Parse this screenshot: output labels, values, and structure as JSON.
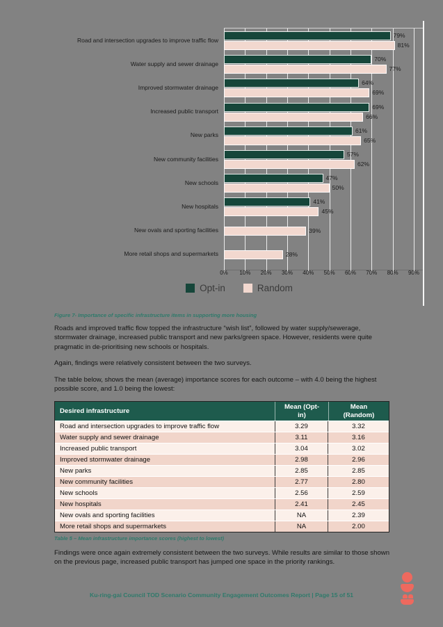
{
  "page": {
    "background": "#828282"
  },
  "chart_data": {
    "type": "bar",
    "orientation": "horizontal",
    "categories": [
      "Road and intersection upgrades to improve traffic flow",
      "Water supply and sewer drainage",
      "Improved stormwater drainage",
      "Increased public transport",
      "New parks",
      "New community facilities",
      "New schools",
      "New hospitals",
      "New ovals and sporting facilities",
      "More retail shops and supermarkets"
    ],
    "series": [
      {
        "name": "Opt-in",
        "color": "#16463A",
        "values": [
          79,
          70,
          64,
          69,
          61,
          57,
          47,
          41,
          null,
          null
        ]
      },
      {
        "name": "Random",
        "color": "#F2D8CF",
        "values": [
          81,
          77,
          69,
          66,
          65,
          62,
          50,
          45,
          39,
          28
        ]
      }
    ],
    "value_suffix": "%",
    "xlim": [
      0,
      90
    ],
    "x_ticks": [
      "0%",
      "10%",
      "20%",
      "30%",
      "40%",
      "50%",
      "60%",
      "70%",
      "80%",
      "90%"
    ],
    "grid": true,
    "legend_position": "bottom"
  },
  "figure_caption": "Figure 7- Importance of specific infrastructure items in supporting more housing",
  "paragraphs": {
    "p1": "Roads and improved traffic flow topped the infrastructure “wish list”, followed by water supply/sewerage, stormwater drainage, increased public transport and new parks/green space. However, residents were quite pragmatic in de-prioritising new schools or hospitals.",
    "p2": "Again, findings were relatively consistent between the two surveys.",
    "p3": "The table below, shows the mean (average) importance scores for each outcome – with 4.0 being the highest possible score, and 1.0 being the lowest:"
  },
  "table": {
    "columns": [
      "Desired infrastructure",
      "Mean (Opt-in)",
      "Mean (Random)"
    ],
    "rows": [
      [
        "Road and intersection upgrades to improve traffic flow",
        "3.29",
        "3.32"
      ],
      [
        "Water supply and sewer drainage",
        "3.11",
        "3.16"
      ],
      [
        "Increased public transport",
        "3.04",
        "3.02"
      ],
      [
        "Improved stormwater drainage",
        "2.98",
        "2.96"
      ],
      [
        "New parks",
        "2.85",
        "2.85"
      ],
      [
        "New community facilities",
        "2.77",
        "2.80"
      ],
      [
        "New schools",
        "2.56",
        "2.59"
      ],
      [
        "New hospitals",
        "2.41",
        "2.45"
      ],
      [
        "New ovals and sporting facilities",
        "NA",
        "2.39"
      ],
      [
        "More retail shops and supermarkets",
        "NA",
        "2.00"
      ]
    ],
    "caption": "Table 5 – Mean infrastructure importance scores (highest to lowest)"
  },
  "closing_paragraph": "Findings were once again extremely consistent between the two surveys. While results are similar to those shown on the previous page, increased public transport has jumped one space in the priority rankings.",
  "footer": {
    "text": "Ku-ring-gai Council TOD Scenario Community Engagement Outcomes Report |  Page 15 of 51"
  },
  "colors": {
    "page_background": "#828282",
    "table_header_bg": "#1E5B4D",
    "table_row_light": "#FBF0EA",
    "table_row_dark": "#F1D5CA",
    "caption_teal": "#2F7A6B",
    "logo_red": "#EE695E"
  }
}
